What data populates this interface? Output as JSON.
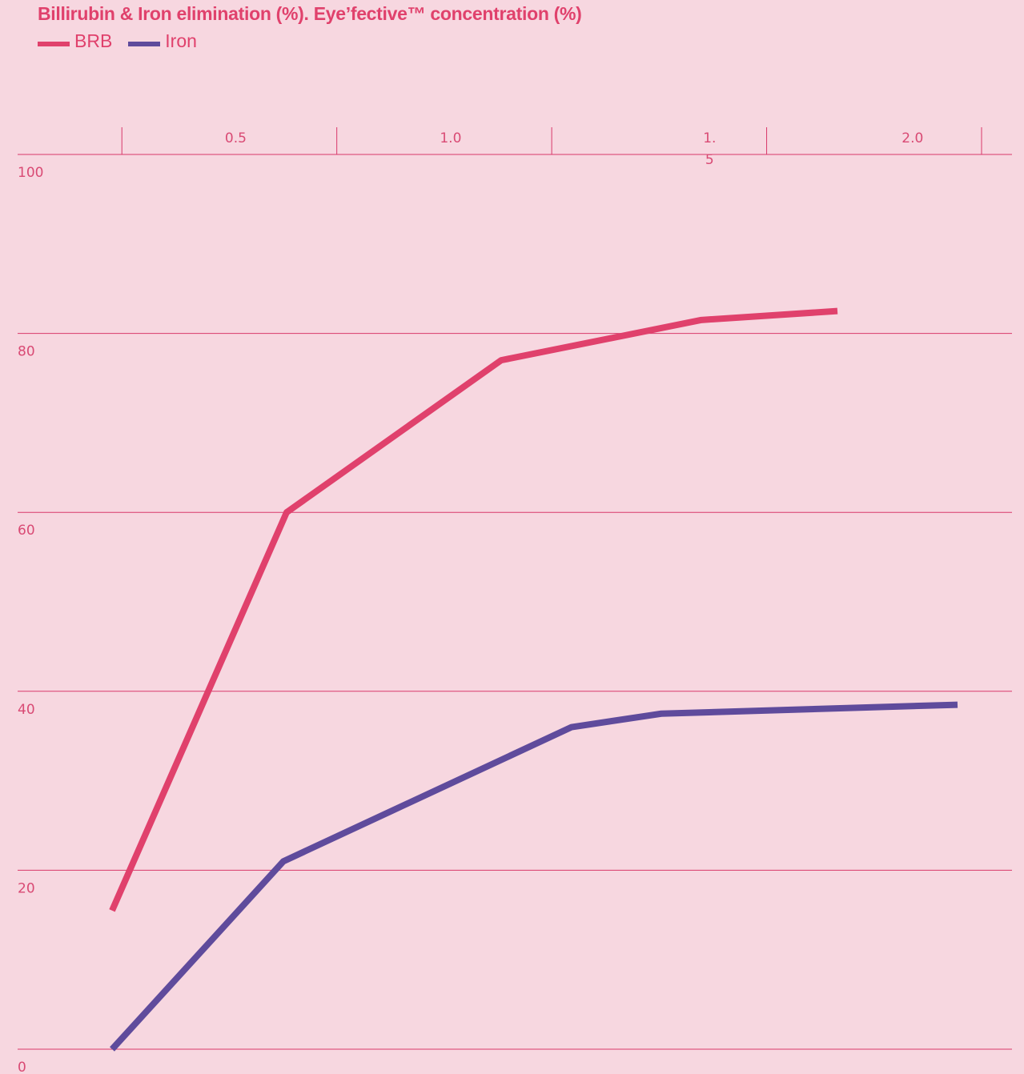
{
  "title": "Billirubin & Iron elimination (%). Eye’fective™ concentration (%)",
  "legend": [
    {
      "label": "BRB",
      "color": "#e0416c"
    },
    {
      "label": "Iron",
      "color": "#5f4b9c"
    }
  ],
  "colors": {
    "background": "#f7d7e0",
    "axis": "#d9386a",
    "title": "#e0416c",
    "tick_text": "#d94a74"
  },
  "chart_data": {
    "type": "line",
    "title": "Billirubin & Iron elimination (%). Eye’fective™ concentration (%)",
    "xlabel": "",
    "ylabel": "",
    "xlim": [
      0,
      2.25
    ],
    "ylim": [
      0,
      100
    ],
    "x_ticks": [
      0.5,
      1.0,
      1.5,
      2.0
    ],
    "x_tick_labels": [
      "0.5",
      "1.0",
      "1.\n5",
      "2.0"
    ],
    "y_ticks": [
      0,
      20,
      40,
      60,
      80,
      100
    ],
    "y_tick_labels": [
      "0",
      "20",
      "40",
      "60",
      "80",
      "100"
    ],
    "grid": "horizontal",
    "legend_position": "top-left",
    "series": [
      {
        "name": "BRB",
        "color": "#e0416c",
        "x": [
          0.1,
          0.5,
          1.0,
          1.5,
          2.0
        ],
        "y": [
          15.5,
          60,
          77,
          81.5,
          82.5
        ]
      },
      {
        "name": "Iron",
        "color": "#5f4b9c",
        "x": [
          0.1,
          0.5,
          1.0,
          1.5,
          2.0
        ],
        "y": [
          0,
          21,
          36,
          37.5,
          38.5
        ]
      }
    ]
  }
}
